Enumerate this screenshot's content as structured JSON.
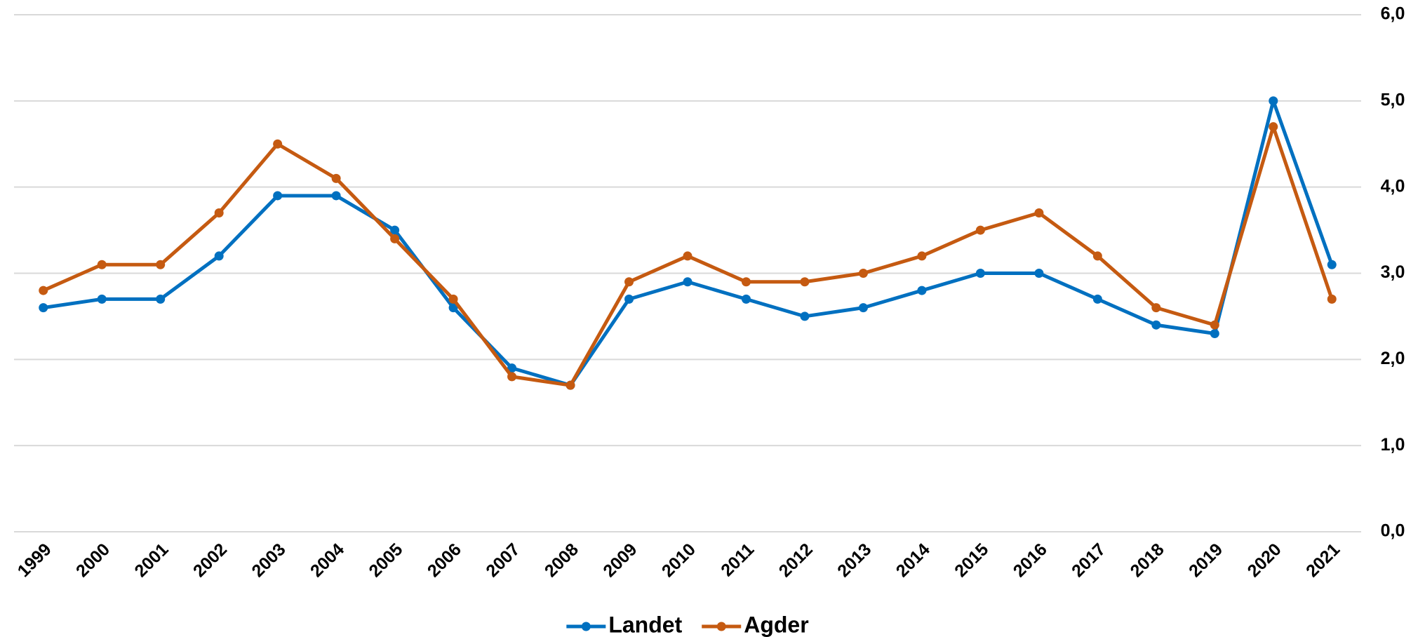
{
  "chart_data": {
    "type": "line",
    "categories": [
      "1999",
      "2000",
      "2001",
      "2002",
      "2003",
      "2004",
      "2005",
      "2006",
      "2007",
      "2008",
      "2009",
      "2010",
      "2011",
      "2012",
      "2013",
      "2014",
      "2015",
      "2016",
      "2017",
      "2018",
      "2019",
      "2020",
      "2021"
    ],
    "series": [
      {
        "name": "Landet",
        "color": "#0070c0",
        "values": [
          2.6,
          2.7,
          2.7,
          3.2,
          3.9,
          3.9,
          3.5,
          2.6,
          1.9,
          1.7,
          2.7,
          2.9,
          2.7,
          2.5,
          2.6,
          2.8,
          3.0,
          3.0,
          2.7,
          2.4,
          2.3,
          5.0,
          3.1
        ]
      },
      {
        "name": "Agder",
        "color": "#c55a11",
        "values": [
          2.8,
          3.1,
          3.1,
          3.7,
          4.5,
          4.1,
          3.4,
          2.7,
          1.8,
          1.7,
          2.9,
          3.2,
          2.9,
          2.9,
          3.0,
          3.2,
          3.5,
          3.7,
          3.2,
          2.6,
          2.4,
          4.7,
          2.7
        ]
      }
    ],
    "ylim": [
      0,
      6
    ],
    "yticks": [
      {
        "value": 0,
        "label": "0,0"
      },
      {
        "value": 1,
        "label": "1,0"
      },
      {
        "value": 2,
        "label": "2,0"
      },
      {
        "value": 3,
        "label": "3,0"
      },
      {
        "value": 4,
        "label": "4,0"
      },
      {
        "value": 5,
        "label": "5,0"
      },
      {
        "value": 6,
        "label": "6,0"
      }
    ],
    "grid": true,
    "legend": "bottom"
  }
}
